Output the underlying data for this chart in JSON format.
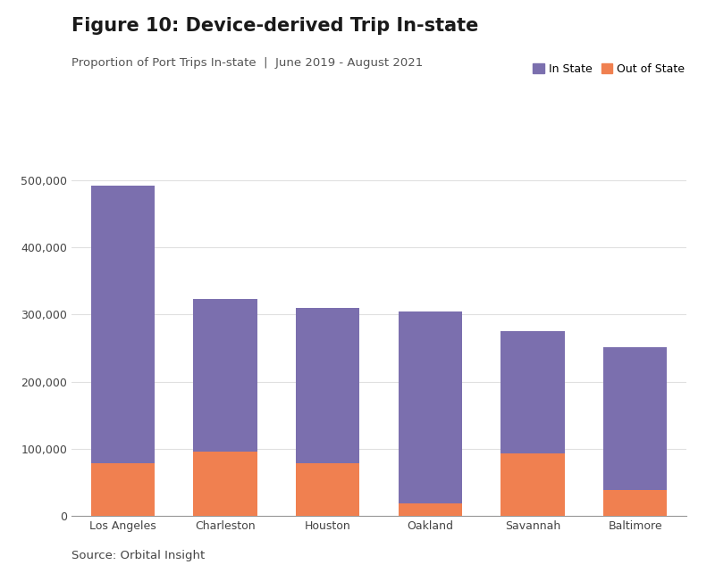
{
  "title": "Figure 10: Device-derived Trip In-state",
  "subtitle": "Proportion of Port Trips In-state  |  June 2019 - August 2021",
  "source": "Source: Orbital Insight",
  "categories": [
    "Los Angeles",
    "Charleston",
    "Houston",
    "Oakland",
    "Savannah",
    "Baltimore"
  ],
  "in_state": [
    415000,
    228000,
    232000,
    287000,
    183000,
    213000
  ],
  "out_of_state": [
    78000,
    95000,
    78000,
    18000,
    93000,
    38000
  ],
  "color_in_state": "#7B6FAE",
  "color_out_of_state": "#F08050",
  "background_color": "#FFFFFF",
  "grid_color": "#E0E0E0",
  "ylim": [
    0,
    530000
  ],
  "yticks": [
    0,
    100000,
    200000,
    300000,
    400000,
    500000
  ],
  "legend_in_state": "In State",
  "legend_out_of_state": "Out of State",
  "title_fontsize": 15,
  "subtitle_fontsize": 9.5,
  "source_fontsize": 9.5,
  "tick_fontsize": 9,
  "bar_width": 0.62
}
